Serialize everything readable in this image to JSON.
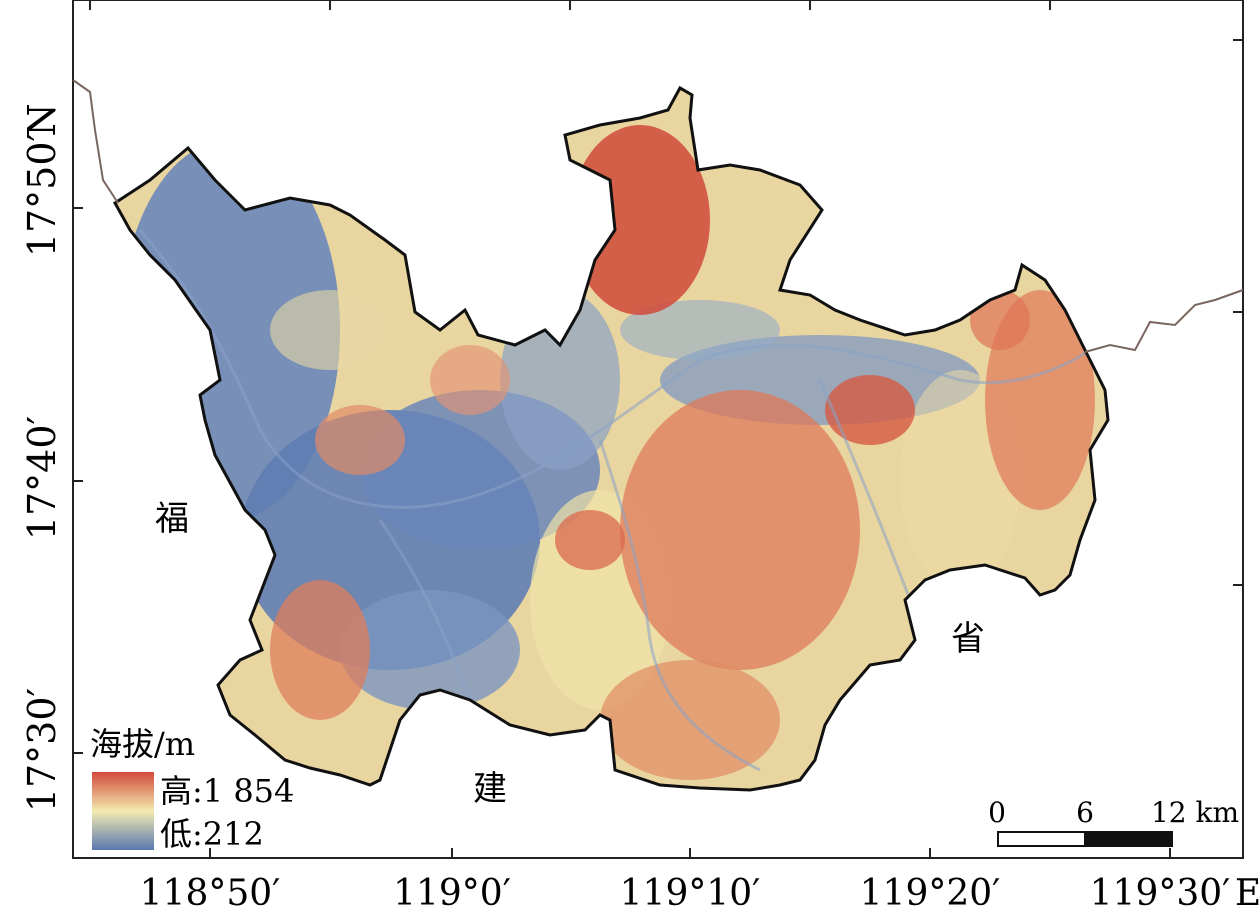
{
  "map": {
    "x_ticks": [
      "118°50′",
      "119°0′",
      "119°10′",
      "119°20′",
      "119°30′"
    ],
    "x_unit": "E",
    "y_ticks": [
      "17°50′",
      "17°40′",
      "17°30′"
    ],
    "y_unit": "N",
    "places": [
      "福",
      "建",
      "省"
    ],
    "colors": {
      "high": "#d14a3a",
      "mid": "#f3eab0",
      "low": "#5a78b0",
      "border": "#111111",
      "river_line": "#7a6660"
    }
  },
  "legend": {
    "title": "海拔/m",
    "high": "高:1 854",
    "low": "低:212"
  },
  "scale": {
    "labels": [
      "0",
      "6",
      "12 km"
    ]
  }
}
